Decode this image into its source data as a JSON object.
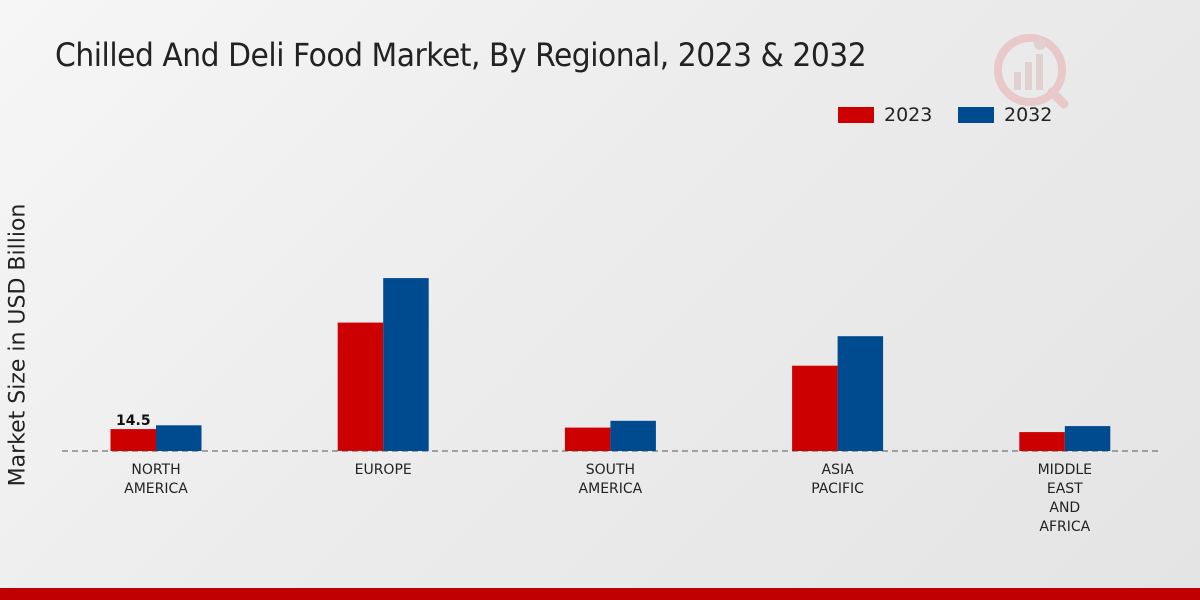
{
  "chart_data": {
    "type": "bar",
    "title": "Chilled And Deli Food Market, By Regional, 2023 & 2032",
    "xlabel": "",
    "ylabel": "Market Size in USD Billion",
    "categories": [
      "NORTH\nAMERICA",
      "EUROPE",
      "SOUTH\nAMERICA",
      "ASIA\nPACIFIC",
      "MIDDLE\nEAST\nAND\nAFRICA"
    ],
    "series": [
      {
        "name": "2023",
        "color": "#cc0000",
        "values": [
          14.5,
          85.0,
          15.5,
          56.5,
          12.5
        ]
      },
      {
        "name": "2032",
        "color": "#004a8f",
        "values": [
          17.0,
          114.5,
          20.0,
          76.0,
          16.5
        ]
      }
    ],
    "annotations": [
      {
        "category": "NORTH\nAMERICA",
        "series": "2023",
        "label": "14.5"
      }
    ],
    "ylim": [
      0,
      140
    ],
    "grid": false,
    "legend": "top-right"
  },
  "colors": {
    "accent": "#cc0000",
    "brand": "#004a8f"
  }
}
